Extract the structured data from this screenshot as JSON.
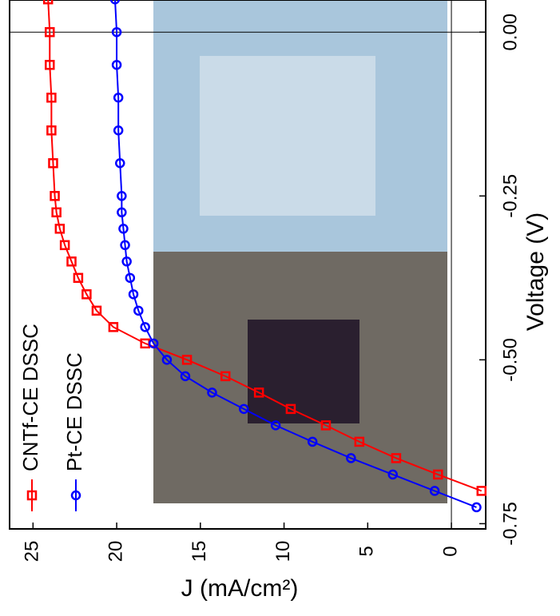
{
  "chart_data": {
    "type": "line",
    "x_label": "Voltage (V)",
    "y_label": "J (mA/cm²)",
    "x": [
      -0.725,
      -0.7,
      -0.675,
      -0.65,
      -0.625,
      -0.6,
      -0.575,
      -0.55,
      -0.525,
      -0.5,
      -0.475,
      -0.45,
      -0.425,
      -0.4,
      -0.375,
      -0.35,
      -0.325,
      -0.3,
      -0.275,
      -0.25,
      -0.2,
      -0.15,
      -0.1,
      -0.05,
      0,
      0.05
    ],
    "series": [
      {
        "name": "CNTf-CE DSSC",
        "color": "#ff0000",
        "marker": "square",
        "values": [
          null,
          -1.8,
          0.8,
          3.3,
          5.5,
          7.5,
          9.6,
          11.5,
          13.5,
          15.8,
          18.3,
          20.2,
          21.2,
          21.8,
          22.3,
          22.7,
          23.1,
          23.4,
          23.6,
          23.7,
          23.8,
          23.9,
          23.9,
          24.0,
          24.0,
          24.1
        ]
      },
      {
        "name": "Pt-CE DSSC",
        "color": "#0000ff",
        "marker": "circle",
        "values": [
          -1.5,
          1.0,
          3.5,
          6.0,
          8.3,
          10.5,
          12.4,
          14.3,
          15.9,
          17.0,
          17.8,
          18.3,
          18.7,
          19.0,
          19.2,
          19.4,
          19.5,
          19.6,
          19.7,
          19.7,
          19.8,
          19.9,
          19.9,
          20.0,
          20.0,
          20.1
        ]
      }
    ],
    "xlim": [
      -0.758,
      0.049
    ],
    "xticks": [
      {
        "value": -0.75,
        "label": "-0.75"
      },
      {
        "value": -0.5,
        "label": "-0.50"
      },
      {
        "value": -0.25,
        "label": "-0.25"
      },
      {
        "value": 0,
        "label": "0.00"
      }
    ],
    "ylim": [
      -2.05,
      26.4
    ],
    "yticks": [
      0,
      5,
      10,
      15,
      20,
      25
    ],
    "rotated": true
  }
}
